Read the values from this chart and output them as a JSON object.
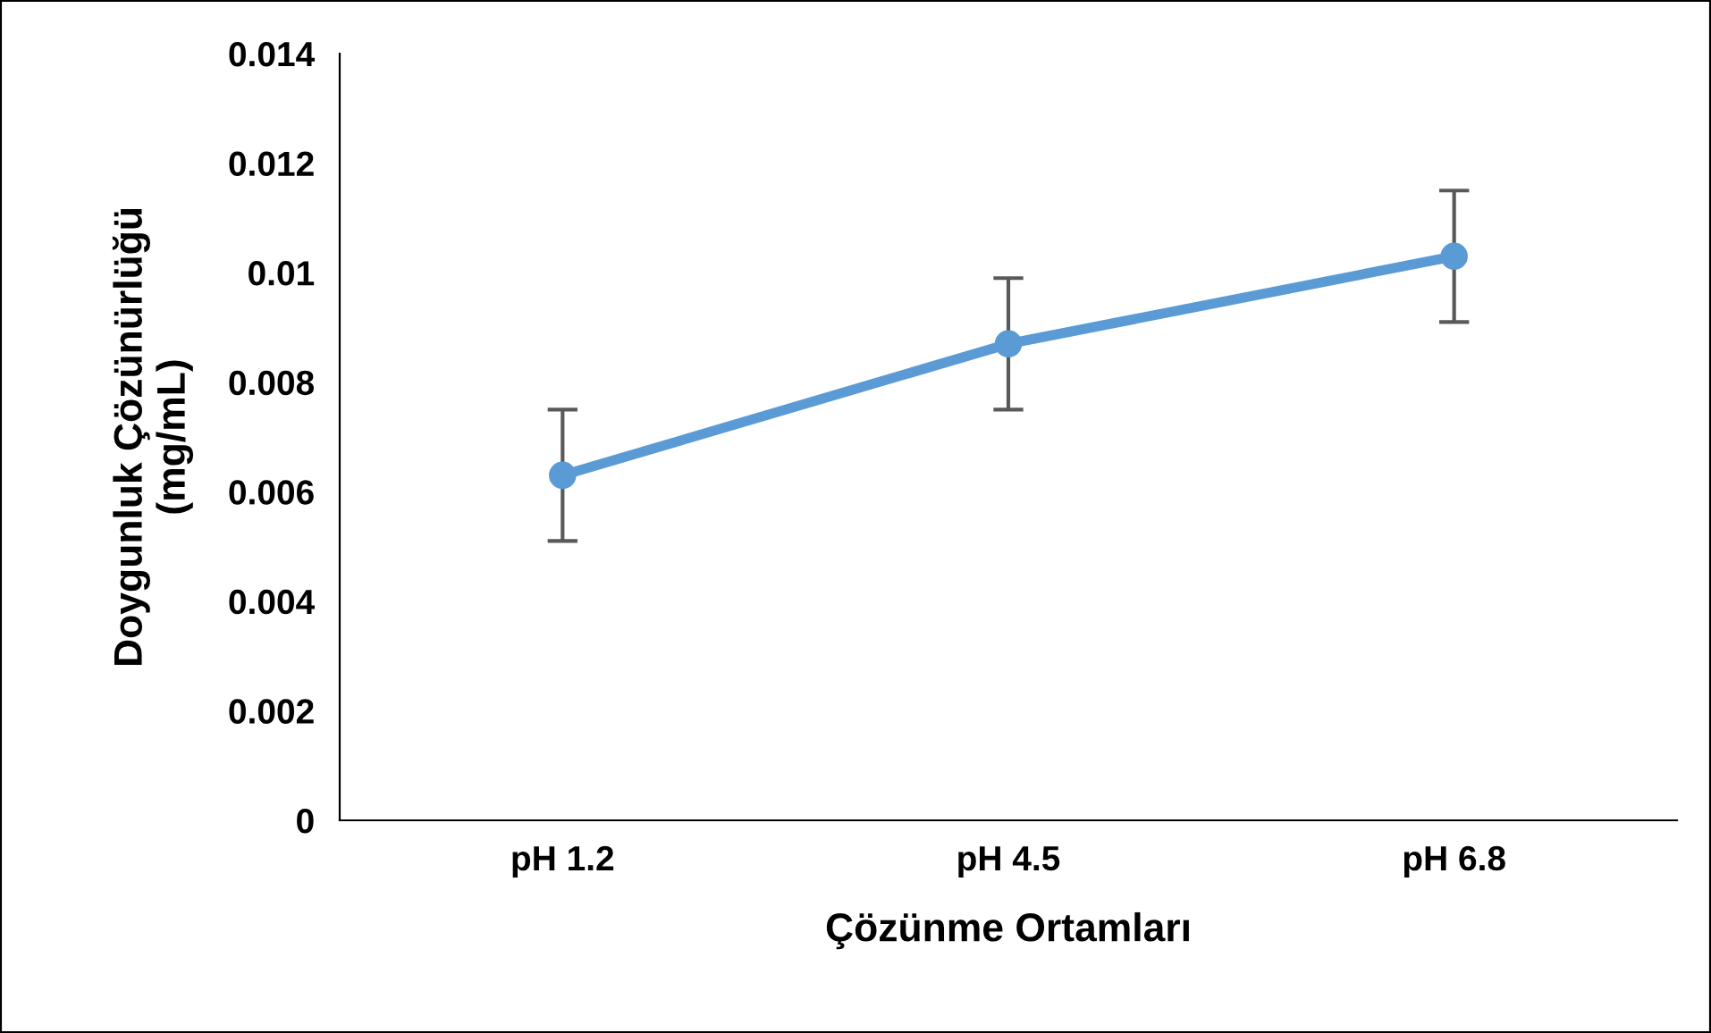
{
  "chart_data": {
    "type": "line",
    "xlabel": "Çözünme Ortamları",
    "ylabel": "Doygunluk Çözünürlüğü\n(mg/mL)",
    "categories": [
      "pH 1.2",
      "pH 4.5",
      "pH 6.8"
    ],
    "series": [
      {
        "color": "#5b9bd5",
        "values": [
          0.0063,
          0.0087,
          0.0103
        ],
        "errors": [
          0.0012,
          0.0012,
          0.0012
        ]
      }
    ],
    "ylim": [
      0,
      0.014
    ],
    "yticks": [
      {
        "value": 0,
        "label": "0"
      },
      0.002,
      0.004,
      0.006,
      0.008,
      0.01,
      0.012,
      0.014
    ],
    "marker": "circle",
    "line_style": "solid",
    "grid": false,
    "legend": false
  }
}
